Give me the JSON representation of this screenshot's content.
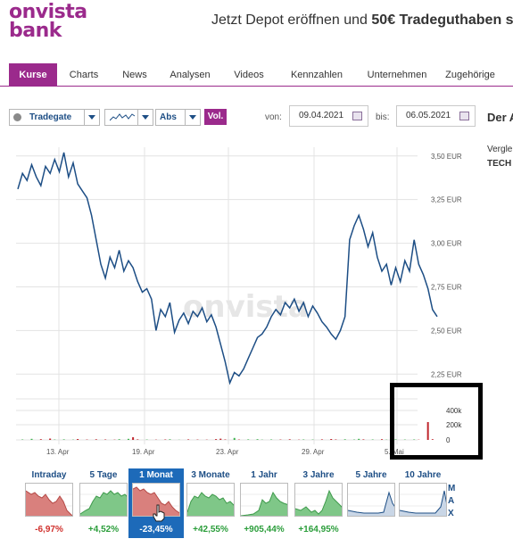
{
  "header": {
    "logo_line1": "onvista",
    "logo_line2": "bank",
    "promo_prefix": "Jetzt Depot eröffnen und ",
    "promo_bold": "50€ Tradeguthaben s"
  },
  "tabs": [
    "Kurse",
    "Charts",
    "News",
    "Analysen",
    "Videos",
    "Kennzahlen",
    "Unternehmen",
    "Zugehörige"
  ],
  "toolbar": {
    "exchange": "Tradegate",
    "mode": "Abs",
    "vol_label": "Vol.",
    "from_label": "von:",
    "from_date": "09.04.2021",
    "to_label": "bis:",
    "to_date": "06.05.2021"
  },
  "side_panel": {
    "title": "Der A",
    "line1": "Vergle",
    "line2": "TECH"
  },
  "chart_data": {
    "type": "line",
    "watermark": "onvista",
    "y_ticks": [
      "3,50 EUR",
      "3,25 EUR",
      "3,00 EUR",
      "2,75 EUR",
      "2,50 EUR",
      "2,25 EUR"
    ],
    "y_tick_values": [
      3.5,
      3.25,
      3.0,
      2.75,
      2.5,
      2.25
    ],
    "x_ticks": [
      "13. Apr",
      "19. Apr",
      "23. Apr",
      "29. Apr",
      "5. Mai"
    ],
    "volume_ticks": [
      "400k",
      "200k",
      "0"
    ],
    "ylim": [
      2.18,
      3.55
    ],
    "price_series": [
      3.31,
      3.4,
      3.36,
      3.45,
      3.38,
      3.33,
      3.44,
      3.4,
      3.48,
      3.41,
      3.52,
      3.38,
      3.46,
      3.34,
      3.3,
      3.26,
      3.16,
      3.02,
      2.88,
      2.8,
      2.92,
      2.86,
      2.96,
      2.84,
      2.9,
      2.86,
      2.78,
      2.72,
      2.74,
      2.68,
      2.5,
      2.62,
      2.58,
      2.66,
      2.49,
      2.56,
      2.6,
      2.54,
      2.61,
      2.58,
      2.63,
      2.55,
      2.59,
      2.52,
      2.42,
      2.32,
      2.2,
      2.26,
      2.24,
      2.28,
      2.34,
      2.4,
      2.46,
      2.48,
      2.52,
      2.58,
      2.62,
      2.59,
      2.66,
      2.63,
      2.68,
      2.61,
      2.66,
      2.58,
      2.64,
      2.6,
      2.55,
      2.52,
      2.48,
      2.45,
      2.5,
      2.58,
      3.02,
      3.1,
      3.16,
      3.08,
      2.98,
      3.06,
      2.92,
      2.84,
      2.88,
      2.76,
      2.86,
      2.78,
      2.9,
      2.84,
      3.02,
      2.88,
      2.82,
      2.74,
      2.62,
      2.58
    ],
    "volume_series": [
      0,
      5,
      0,
      12,
      0,
      8,
      0,
      15,
      4,
      0,
      6,
      0,
      3,
      10,
      0,
      4,
      0,
      7,
      0,
      5,
      0,
      3,
      8,
      0,
      12,
      30,
      6,
      0,
      4,
      0,
      3,
      0,
      5,
      7,
      0,
      2,
      0,
      6,
      0,
      4,
      0,
      3,
      0,
      9,
      14,
      5,
      0,
      22,
      4,
      0,
      6,
      0,
      8,
      3,
      0,
      5,
      0,
      4,
      0,
      7,
      0,
      3,
      5,
      0,
      4,
      0,
      6,
      0,
      10,
      5,
      0,
      7,
      0,
      4,
      12,
      6,
      0,
      5,
      0,
      8,
      3,
      0,
      6,
      0,
      4,
      0,
      5,
      3,
      0,
      200,
      8,
      0
    ],
    "colors": {
      "line": "#1d4e85",
      "vol_up": "#3fb34f",
      "vol_down": "#c0262d",
      "grid": "#e3e3e3"
    }
  },
  "timeframes": [
    {
      "label": "Intraday",
      "change": "-6,97%",
      "dir": "neg"
    },
    {
      "label": "5 Tage",
      "change": "+4,52%",
      "dir": "pos"
    },
    {
      "label": "1 Monat",
      "change": "-23,45%",
      "dir": "neg",
      "active": true
    },
    {
      "label": "3 Monate",
      "change": "+42,55%",
      "dir": "pos"
    },
    {
      "label": "1 Jahr",
      "change": "+905,44%",
      "dir": "pos"
    },
    {
      "label": "3 Jahre",
      "change": "+164,95%",
      "dir": "pos"
    },
    {
      "label": "5 Jahre",
      "change": "",
      "dir": "pos"
    },
    {
      "label": "10 Jahre",
      "change": "",
      "dir": "pos"
    }
  ],
  "max_label": [
    "M",
    "A",
    "X"
  ]
}
